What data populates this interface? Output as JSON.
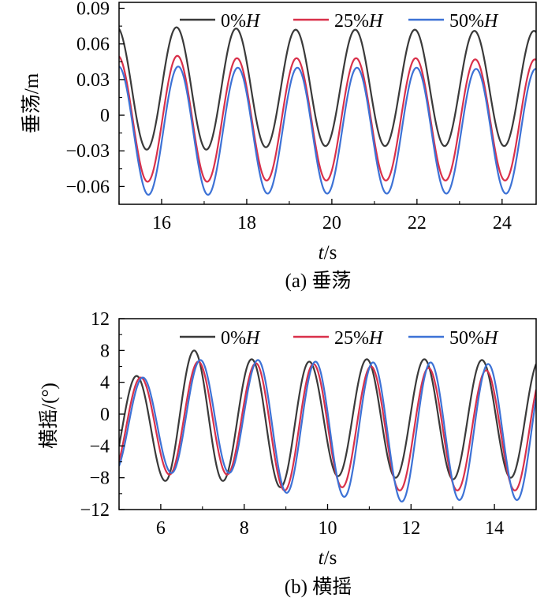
{
  "chart_data": [
    {
      "type": "line",
      "caption": "(a) 垂荡",
      "xlabel_italic": "t",
      "xlabel_unit": "/s",
      "ylabel": "垂荡/m",
      "xlim": [
        15,
        24.8
      ],
      "ylim": [
        -0.075,
        0.095
      ],
      "xticks": [
        16,
        18,
        20,
        22,
        24
      ],
      "yticks": [
        0.09,
        0.06,
        0.03,
        0,
        -0.03,
        -0.06
      ],
      "ytick_labels": [
        "0.09",
        "0.06",
        "0.03",
        "0",
        "−0.03",
        "−0.06"
      ],
      "grid": false,
      "legend_position": "top-right",
      "series": [
        {
          "name_prefix": "0%",
          "name_italic": "H",
          "color": "#3a3a3a",
          "wave": {
            "period": 1.4,
            "peak_t": 16.35,
            "peaks": [
              0.074,
              0.073,
              0.072,
              0.072,
              0.072,
              0.071,
              0.071
            ],
            "troughs": [
              -0.029,
              -0.027,
              -0.026,
              -0.026,
              -0.026,
              -0.026,
              -0.026
            ]
          }
        },
        {
          "name_prefix": "25%",
          "name_italic": "H",
          "color": "#d9304a",
          "wave": {
            "period": 1.4,
            "peak_t": 16.37,
            "peaks": [
              0.05,
              0.048,
              0.048,
              0.048,
              0.048,
              0.047,
              0.047
            ],
            "troughs": [
              -0.056,
              -0.055,
              -0.055,
              -0.055,
              -0.055,
              -0.055,
              -0.055
            ]
          }
        },
        {
          "name_prefix": "50%",
          "name_italic": "H",
          "color": "#3d72d6",
          "wave": {
            "period": 1.4,
            "peak_t": 16.39,
            "peaks": [
              0.041,
              0.04,
              0.04,
              0.04,
              0.04,
              0.039,
              0.039
            ],
            "troughs": [
              -0.067,
              -0.066,
              -0.066,
              -0.066,
              -0.066,
              -0.066,
              -0.066
            ]
          }
        }
      ]
    },
    {
      "type": "line",
      "caption": "(b) 横摇",
      "xlabel_italic": "t",
      "xlabel_unit": "/s",
      "ylabel": "横摇/(°)",
      "xlim": [
        5,
        15
      ],
      "ylim": [
        -12,
        12
      ],
      "xticks": [
        6,
        8,
        10,
        12,
        14
      ],
      "yticks": [
        12,
        8,
        4,
        0,
        -4,
        -8,
        -12
      ],
      "ytick_labels": [
        "12",
        "8",
        "4",
        "0",
        "−4",
        "−8",
        "−12"
      ],
      "grid": false,
      "legend_position": "top-right",
      "series": [
        {
          "name_prefix": "0%",
          "name_italic": "H",
          "color": "#3a3a3a",
          "wave": {
            "period": 1.38,
            "peak_t": 6.8,
            "pre_peak": 4.8,
            "peaks": [
              8.0,
              6.9,
              6.6,
              6.9,
              6.9,
              6.8
            ],
            "troughs": [
              -8.4,
              -9.2,
              -7.8,
              -8.0,
              -8.2,
              -8.0,
              -8.2
            ]
          }
        },
        {
          "name_prefix": "25%",
          "name_italic": "H",
          "color": "#d9304a",
          "wave": {
            "period": 1.38,
            "peak_t": 6.9,
            "pre_peak": 4.6,
            "peaks": [
              6.6,
              6.4,
              6.3,
              6.0,
              5.8,
              5.5
            ],
            "troughs": [
              -7.6,
              -9.6,
              -9.2,
              -9.6,
              -9.6,
              -9.6,
              -9.6
            ]
          }
        },
        {
          "name_prefix": "50%",
          "name_italic": "H",
          "color": "#3d72d6",
          "wave": {
            "period": 1.38,
            "peak_t": 6.95,
            "pre_peak": 4.6,
            "peaks": [
              6.8,
              6.8,
              6.6,
              6.5,
              6.5,
              6.3
            ],
            "troughs": [
              -7.4,
              -9.9,
              -10.4,
              -11.0,
              -10.8,
              -10.8,
              -10.4
            ]
          }
        }
      ]
    }
  ]
}
